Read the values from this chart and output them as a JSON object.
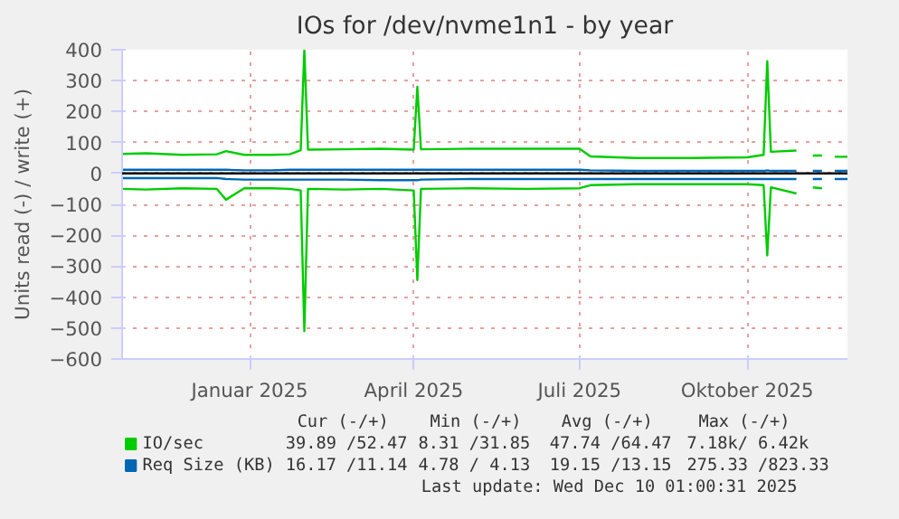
{
  "chart_data": {
    "type": "line",
    "title": "IOs for /dev/nvme1n1 - by year",
    "ylabel": "Units read (-) / write (+)",
    "x": [
      "2024-10-23",
      "2024-11-05",
      "2024-11-25",
      "2024-12-14",
      "2024-12-19",
      "2024-12-29",
      "2025-01-13",
      "2025-01-23",
      "2025-01-29",
      "2025-01-31",
      "2025-02-02",
      "2025-02-22",
      "2025-03-14",
      "2025-04-01",
      "2025-04-03",
      "2025-04-05",
      "2025-05-03",
      "2025-06-02",
      "2025-07-01",
      "2025-07-07",
      "2025-08-01",
      "2025-08-31",
      "2025-10-01",
      "2025-10-10",
      "2025-10-12",
      "2025-10-14",
      "2025-10-28",
      "2025-11-02",
      "2025-11-06",
      "2025-11-11",
      "2025-11-14",
      "2025-11-18",
      "2025-11-25"
    ],
    "series": [
      {
        "name": "IO/sec",
        "color": "#00cc00",
        "values": [
          63,
          65,
          60,
          62,
          72,
          60,
          60,
          62,
          75,
          400,
          77,
          78,
          80,
          77,
          280,
          78,
          80,
          80,
          80,
          55,
          50,
          50,
          52,
          60,
          363,
          70,
          74,
          null,
          58,
          58,
          null,
          54,
          54
        ]
      },
      {
        "color": "#00cc00",
        "values": [
          -50,
          -52,
          -48,
          -50,
          -85,
          -48,
          -48,
          -50,
          -55,
          -510,
          -50,
          -52,
          -50,
          -55,
          -345,
          -50,
          -48,
          -50,
          -48,
          -38,
          -35,
          -35,
          -35,
          -38,
          -265,
          -45,
          -65,
          null,
          -45,
          -48,
          null,
          null,
          null
        ]
      },
      {
        "name": "Req Size (KB)",
        "color": "#0066b3",
        "values": [
          12,
          12,
          12,
          12,
          12,
          10,
          10,
          12,
          12,
          12,
          12,
          12,
          12,
          12,
          12,
          12,
          12,
          12,
          12,
          10,
          8,
          8,
          8,
          8,
          10,
          8,
          8,
          null,
          8,
          8,
          null,
          8,
          8
        ]
      },
      {
        "color": "#0066b3",
        "values": [
          -15,
          -15,
          -15,
          -15,
          -18,
          -20,
          -20,
          -20,
          -20,
          -20,
          -20,
          -20,
          -22,
          -22,
          -22,
          -20,
          -18,
          -18,
          -18,
          -18,
          -18,
          -18,
          -18,
          -18,
          -18,
          -18,
          -18,
          null,
          -18,
          -18,
          null,
          -18,
          -18
        ]
      }
    ],
    "xlim": [
      "2024-10-23",
      "2025-11-25"
    ],
    "xticks": [
      {
        "value": "2025-01-01",
        "label": "Januar 2025"
      },
      {
        "value": "2025-04-01",
        "label": "April 2025"
      },
      {
        "value": "2025-07-01",
        "label": "Juli 2025"
      },
      {
        "value": "2025-10-01",
        "label": "Oktober 2025"
      }
    ],
    "ylim": [
      -600,
      400
    ],
    "yticks": [
      -600,
      -500,
      -400,
      -300,
      -200,
      -100,
      0,
      100,
      200,
      300,
      400
    ],
    "ref_lines": [
      {
        "axis": "y",
        "value": 0,
        "color": "#000000"
      }
    ],
    "grid": true,
    "legend": "bottom",
    "marker": "none",
    "line_style": "solid",
    "annotations": [
      "Cur (-/+)",
      "Min (-/+)",
      "Avg (-/+)",
      "Max (-/+)",
      "39.89 /52.47",
      "8.31 /31.85",
      "47.74 /64.47",
      "7.18k/ 6.42k",
      "16.17 /11.14",
      "4.78 / 4.13",
      "19.15 /13.15",
      "275.33 /823.33",
      "Last update: Wed Dec 10 01:00:31 2025"
    ]
  }
}
